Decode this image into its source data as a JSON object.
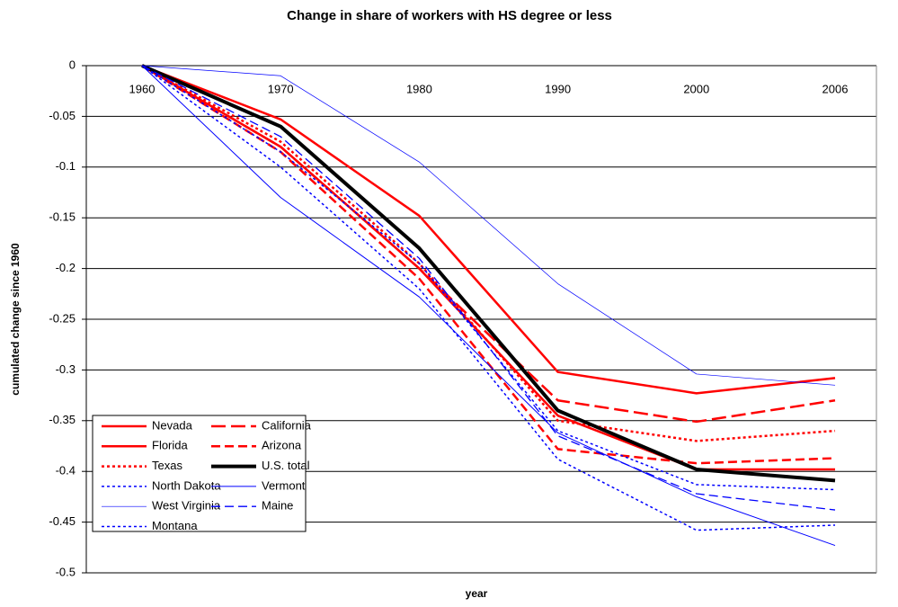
{
  "chart_data": {
    "type": "line",
    "title": "Change in share of workers with HS degree or less",
    "x_label": "year",
    "y_label": "cumulated change since 1960",
    "categories": [
      "1960",
      "1970",
      "1980",
      "1990",
      "2000",
      "2006"
    ],
    "ylim": [
      -0.5,
      0
    ],
    "yticks": [
      0,
      -0.05,
      -0.1,
      -0.15,
      -0.2,
      -0.25,
      -0.3,
      -0.35,
      -0.4,
      -0.45,
      -0.5
    ],
    "grid": true,
    "legend": "lower left",
    "series": [
      {
        "name": "Nevada",
        "color": "#ff0000",
        "style": "solid",
        "width": 2.5,
        "values": [
          0,
          -0.053,
          -0.148,
          -0.302,
          -0.323,
          -0.308
        ]
      },
      {
        "name": "California",
        "color": "#ff0000",
        "style": "longdash",
        "width": 2.5,
        "values": [
          0,
          -0.08,
          -0.2,
          -0.33,
          -0.351,
          -0.33
        ]
      },
      {
        "name": "Florida",
        "color": "#ff0000",
        "style": "solid",
        "width": 2.5,
        "values": [
          0,
          -0.08,
          -0.2,
          -0.345,
          -0.398,
          -0.398
        ]
      },
      {
        "name": "Arizona",
        "color": "#ff0000",
        "style": "dash",
        "width": 2.5,
        "values": [
          0,
          -0.085,
          -0.21,
          -0.378,
          -0.392,
          -0.387
        ]
      },
      {
        "name": "Texas",
        "color": "#ff0000",
        "style": "dot",
        "width": 2.5,
        "values": [
          0,
          -0.075,
          -0.195,
          -0.35,
          -0.37,
          -0.36
        ]
      },
      {
        "name": "U.S. total",
        "color": "#000000",
        "style": "solid",
        "width": 4,
        "values": [
          0,
          -0.06,
          -0.18,
          -0.34,
          -0.398,
          -0.409
        ]
      },
      {
        "name": "North Dakota",
        "color": "#0000ff",
        "style": "dot",
        "width": 1.5,
        "values": [
          0,
          -0.1,
          -0.22,
          -0.388,
          -0.458,
          -0.453
        ]
      },
      {
        "name": "Vermont",
        "color": "#0000ff",
        "style": "solid",
        "width": 1,
        "values": [
          0,
          -0.13,
          -0.228,
          -0.362,
          -0.425,
          -0.473
        ]
      },
      {
        "name": "West Virginia",
        "color": "#0000ff",
        "style": "solid",
        "width": 0.7,
        "values": [
          0,
          -0.01,
          -0.095,
          -0.215,
          -0.304,
          -0.315
        ]
      },
      {
        "name": "Maine",
        "color": "#0000ff",
        "style": "dash",
        "width": 1.3,
        "values": [
          0,
          -0.07,
          -0.19,
          -0.365,
          -0.422,
          -0.438
        ]
      },
      {
        "name": "Montana",
        "color": "#0000ff",
        "style": "dot",
        "width": 1.5,
        "values": [
          0,
          -0.085,
          -0.195,
          -0.36,
          -0.413,
          -0.418
        ]
      }
    ]
  }
}
